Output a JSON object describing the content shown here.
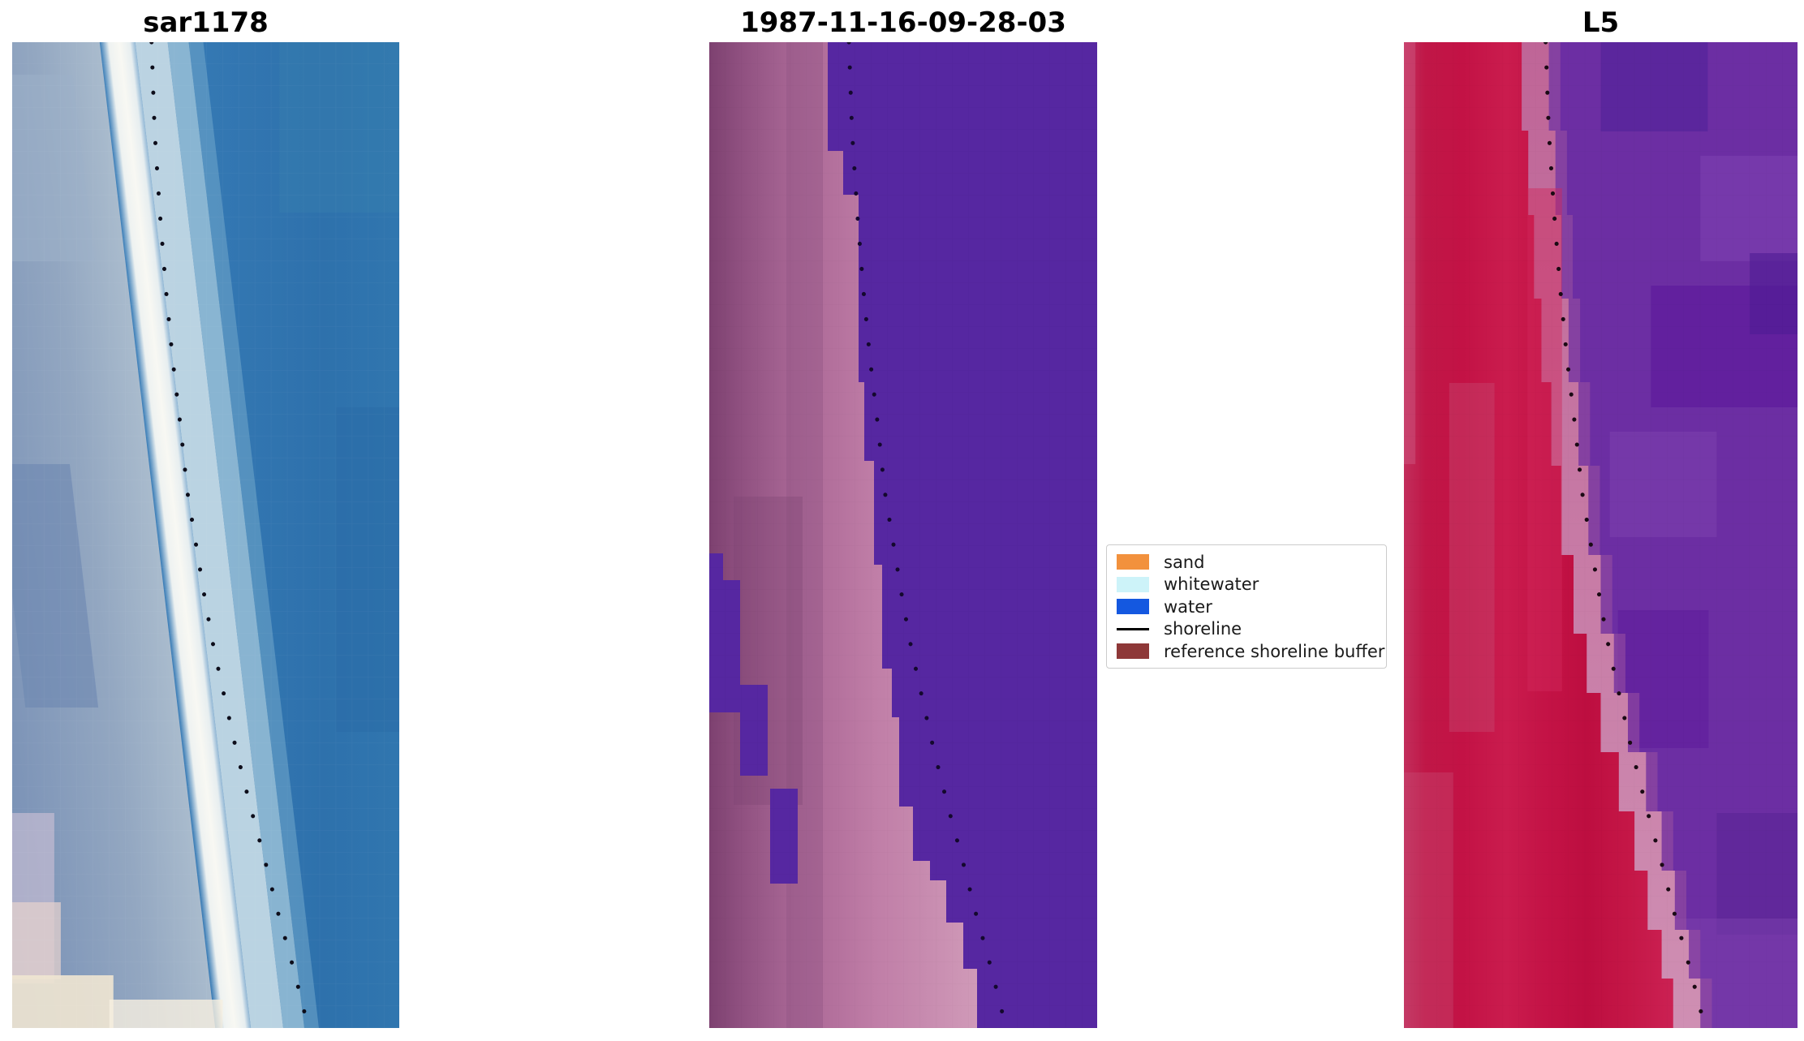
{
  "figure": {
    "background": "#ffffff",
    "panels": [
      {
        "id": "sar",
        "title": "sar1178",
        "palette": {
          "sea_blue": "#3377B2",
          "slate_left": "#5E7DAB",
          "white_band": "#F8F8F3",
          "pale_blue_band": "#C2D8E5",
          "corner_cream": "#F2E6CF"
        }
      },
      {
        "id": "classified",
        "title": "1987-11-16-09-28-03",
        "palette": {
          "water_class_purple": "#5627A1",
          "land_mauve": "#7D4170",
          "land_pink": "#CF94B6"
        }
      },
      {
        "id": "l5",
        "title": "L5",
        "palette": {
          "land_red": "#C41246",
          "transition_pink": "#C3689B",
          "sea_purple": "#6C2EA3"
        }
      }
    ],
    "legend": {
      "items": [
        {
          "label": "sand",
          "kind": "patch",
          "swatch": "#F2913D"
        },
        {
          "label": "whitewater",
          "kind": "patch",
          "swatch": "#CDF3F9"
        },
        {
          "label": "water",
          "kind": "patch",
          "swatch": "#1458E0"
        },
        {
          "label": "shoreline",
          "kind": "line",
          "swatch": "#000000"
        },
        {
          "label": "reference shoreline buffer",
          "kind": "patch",
          "swatch": "#8E3838"
        }
      ]
    }
  },
  "chart_data": {
    "type": "scatter",
    "title": "",
    "panel_titles": [
      "sar1178",
      "1987-11-16-09-28-03",
      "L5"
    ],
    "legend_entries": [
      "sand",
      "whitewater",
      "water",
      "shoreline",
      "reference shoreline buffer"
    ],
    "series": [
      {
        "name": "shoreline",
        "marker": "black-dot",
        "points_normalized": [
          [
            0.36,
            0.0
          ],
          [
            0.368,
            0.09
          ],
          [
            0.381,
            0.17
          ],
          [
            0.397,
            0.25
          ],
          [
            0.414,
            0.32
          ],
          [
            0.435,
            0.39
          ],
          [
            0.452,
            0.455
          ],
          [
            0.471,
            0.5
          ],
          [
            0.498,
            0.565
          ],
          [
            0.521,
            0.615
          ],
          [
            0.546,
            0.66
          ],
          [
            0.577,
            0.715
          ],
          [
            0.615,
            0.775
          ],
          [
            0.653,
            0.83
          ],
          [
            0.688,
            0.885
          ],
          [
            0.72,
            0.93
          ],
          [
            0.751,
            0.977
          ],
          [
            0.764,
            1.0
          ]
        ]
      }
    ],
    "layout": {
      "grid": false,
      "axes_visible": false,
      "legend_position": "center-right-between-panels"
    }
  }
}
